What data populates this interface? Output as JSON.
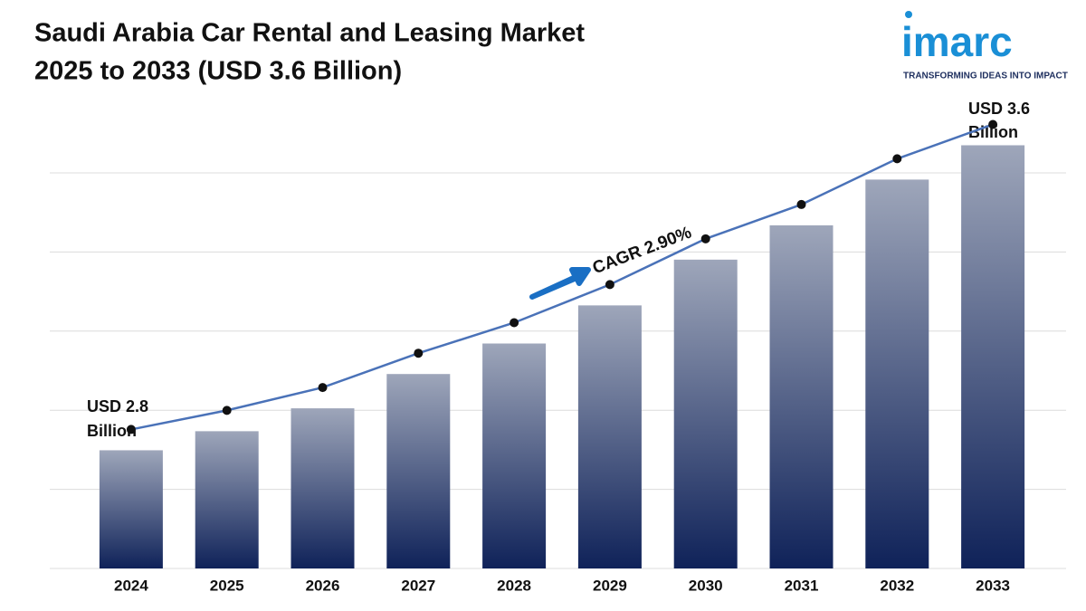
{
  "chart_data": {
    "type": "bar",
    "title": [
      "Saudi Arabia Car Rental and Leasing Market",
      "2025 to 2033 (USD 3.6 Billion)"
    ],
    "logo": {
      "name": "imarc",
      "tagline": "TRANSFORMING IDEAS INTO IMPACT"
    },
    "categories": [
      "2024",
      "2025",
      "2026",
      "2027",
      "2028",
      "2029",
      "2030",
      "2031",
      "2032",
      "2033"
    ],
    "values": [
      2.8,
      2.85,
      2.91,
      3.0,
      3.08,
      3.18,
      3.3,
      3.39,
      3.51,
      3.6
    ],
    "color": "#0f2259",
    "line_color": "#4a72b8",
    "ylim": [
      2.49,
      3.67
    ],
    "annotations": {
      "start": [
        "USD 2.8",
        "Billion"
      ],
      "end": [
        "USD 3.6",
        "Billion"
      ],
      "cagr": "CAGR 2.90%"
    }
  }
}
